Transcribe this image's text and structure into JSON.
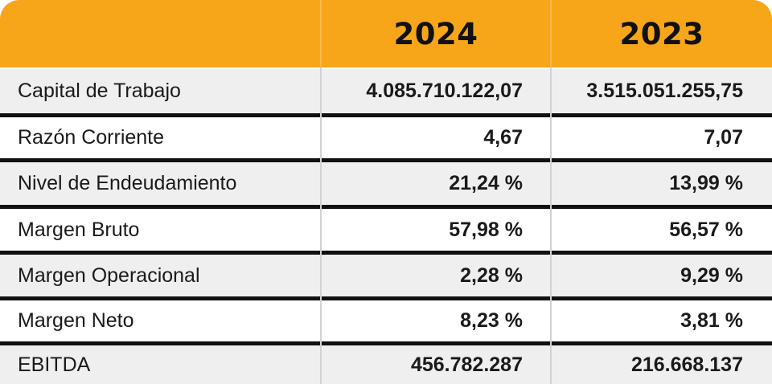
{
  "header": {
    "blank": "",
    "year_1": "2024",
    "year_2": "2023"
  },
  "colors": {
    "header_bg": "#f7a619",
    "row_alt_bg": "#efefef",
    "separator": "#111111"
  },
  "rows": [
    {
      "label": "Capital de Trabajo",
      "v2024": "4.085.710.122,07",
      "v2023": "3.515.051.255,75"
    },
    {
      "label": "Razón Corriente",
      "v2024": "4,67",
      "v2023": "7,07"
    },
    {
      "label": "Nivel de Endeudamiento",
      "v2024": "21,24 %",
      "v2023": "13,99 %"
    },
    {
      "label": "Margen Bruto",
      "v2024": "57,98 %",
      "v2023": "56,57 %"
    },
    {
      "label": "Margen Operacional",
      "v2024": "2,28 %",
      "v2023": "9,29 %"
    },
    {
      "label": "Margen Neto",
      "v2024": "8,23 %",
      "v2023": "3,81 %"
    },
    {
      "label": "EBITDA",
      "v2024": "456.782.287",
      "v2023": "216.668.137"
    }
  ]
}
